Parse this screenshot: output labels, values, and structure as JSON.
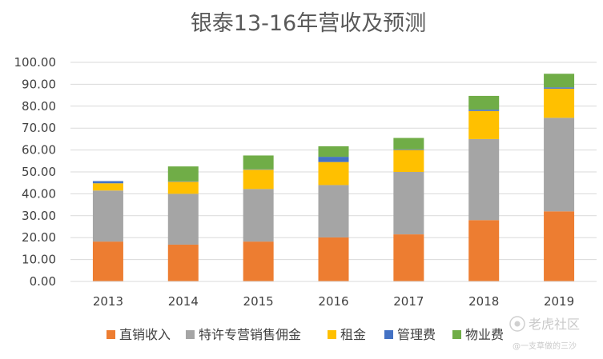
{
  "chart_data": {
    "type": "bar",
    "stacked": true,
    "title": "银泰13-16年营收及预测",
    "xlabel": "",
    "ylabel": "",
    "categories": [
      "2013",
      "2014",
      "2015",
      "2016",
      "2017",
      "2018",
      "2019"
    ],
    "ylim": [
      0,
      100
    ],
    "yticks": [
      "0.00",
      "10.00",
      "20.00",
      "30.00",
      "40.00",
      "50.00",
      "60.00",
      "70.00",
      "80.00",
      "90.00",
      "100.00"
    ],
    "grid": true,
    "legend_position": "bottom",
    "series": [
      {
        "name": "直销收入",
        "color": "#ED7D31",
        "values": [
          18.2,
          16.8,
          18.2,
          20.1,
          21.5,
          28.0,
          32.0
        ]
      },
      {
        "name": "特许专营销售佣金",
        "color": "#A5A5A5",
        "values": [
          23.3,
          23.2,
          24.0,
          23.9,
          28.5,
          37.0,
          42.7
        ]
      },
      {
        "name": "租金",
        "color": "#FFC000",
        "values": [
          3.3,
          5.5,
          8.8,
          10.5,
          10.0,
          12.8,
          13.3
        ]
      },
      {
        "name": "管理费",
        "color": "#4472C4",
        "values": [
          1.0,
          0.2,
          0.2,
          2.4,
          0.3,
          0.6,
          0.6
        ]
      },
      {
        "name": "物业费",
        "color": "#70AD47",
        "values": [
          0.0,
          6.8,
          6.3,
          4.8,
          5.2,
          6.3,
          6.2
        ]
      }
    ]
  },
  "watermark": {
    "text": "老虎社区",
    "subtext": "@一支草做的三沙"
  }
}
